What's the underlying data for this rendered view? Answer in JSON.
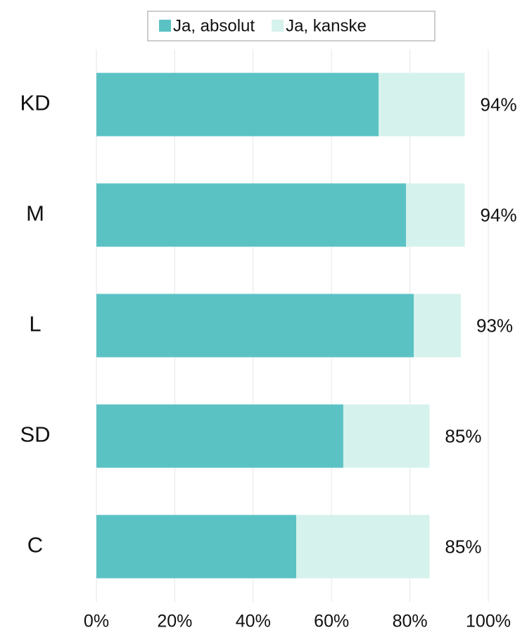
{
  "chart_data": {
    "type": "stacked_barh",
    "categories": [
      "KD",
      "M",
      "L",
      "SD",
      "C"
    ],
    "series": [
      {
        "name": "Ja, absolut",
        "color": "#5bc2c4",
        "values": [
          72,
          79,
          81,
          63,
          51
        ]
      },
      {
        "name": "Ja, kanske",
        "color": "#d6f2ec",
        "values": [
          22,
          15,
          12,
          22,
          34
        ]
      }
    ],
    "totals": [
      94,
      94,
      93,
      85,
      85
    ],
    "total_labels": [
      "94%",
      "94%",
      "93%",
      "85%",
      "85%"
    ],
    "xlim": [
      0,
      100
    ],
    "xticks": [
      {
        "value": 0,
        "label": "0%"
      },
      {
        "value": 20,
        "label": "20%"
      },
      {
        "value": 40,
        "label": "40%"
      },
      {
        "value": 60,
        "label": "60%"
      },
      {
        "value": 80,
        "label": "80%"
      },
      {
        "value": 100,
        "label": "100%"
      }
    ],
    "grid": true,
    "legend": "top"
  }
}
